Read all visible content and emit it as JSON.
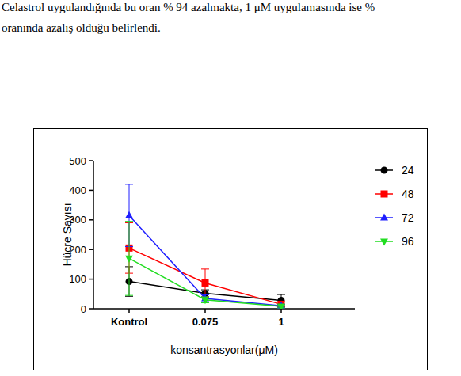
{
  "text": [
    "Celastrol uygulandığında bu oran % 94 azalmakta, 1 μM uygulamasında ise %",
    "oranında azalış olduğu belirlendi."
  ],
  "chart_data": {
    "type": "line",
    "x_label": "konsantrasyonlar(μM)",
    "y_label": "Hücre Sayısı",
    "categories": [
      "Kontrol",
      "0.075",
      "1"
    ],
    "ylim": [
      0,
      500
    ],
    "yticks": [
      0,
      100,
      200,
      300,
      400,
      500
    ],
    "grid": false,
    "legend": "right",
    "series": [
      {
        "name": "24",
        "color": "#000000",
        "marker": "circle",
        "values": [
          92,
          52,
          28
        ],
        "errors": [
          50,
          12,
          20
        ]
      },
      {
        "name": "48",
        "color": "#ff0000",
        "marker": "square",
        "values": [
          205,
          87,
          15
        ],
        "errors": [
          85,
          47,
          8
        ]
      },
      {
        "name": "72",
        "color": "#1f1fff",
        "marker": "triangle",
        "values": [
          315,
          35,
          10
        ],
        "errors": [
          105,
          12,
          5
        ]
      },
      {
        "name": "96",
        "color": "#22dd22",
        "marker": "triangle-down",
        "values": [
          170,
          30,
          8
        ],
        "errors": [
          125,
          10,
          5
        ]
      }
    ]
  }
}
